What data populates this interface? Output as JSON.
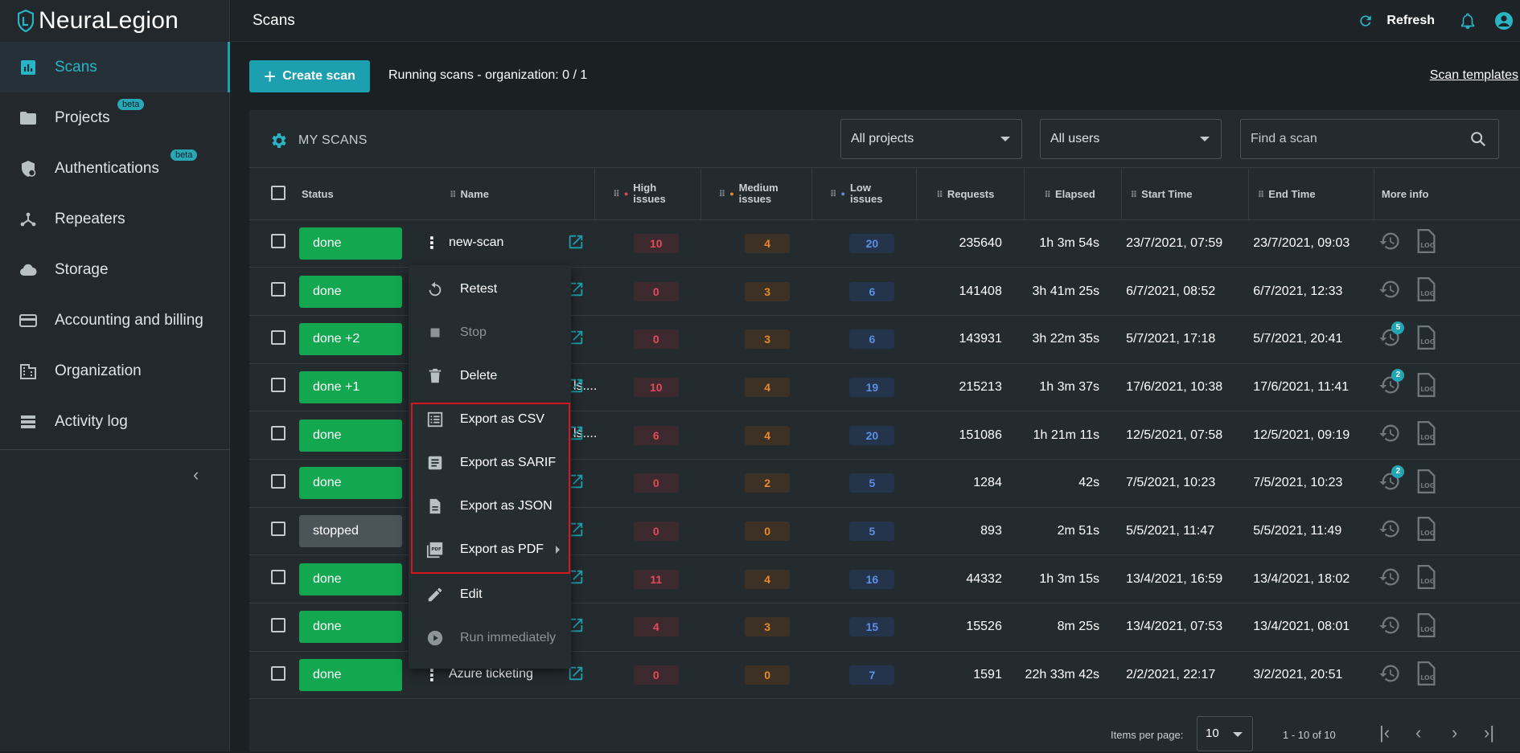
{
  "app": {
    "brand": "NeuraLegion",
    "page_title": "Scans",
    "refresh_label": "Refresh"
  },
  "sidebar": {
    "items": [
      {
        "label": "Scans",
        "icon": "bar-chart-icon",
        "active": true
      },
      {
        "label": "Projects",
        "icon": "folder-icon",
        "beta": "beta"
      },
      {
        "label": "Authentications",
        "icon": "shield-icon",
        "beta": "beta"
      },
      {
        "label": "Repeaters",
        "icon": "network-icon"
      },
      {
        "label": "Storage",
        "icon": "cloud-icon"
      },
      {
        "label": "Accounting and billing",
        "icon": "credit-card-icon"
      },
      {
        "label": "Organization",
        "icon": "building-icon"
      },
      {
        "label": "Activity log",
        "icon": "list-icon"
      }
    ],
    "collapse_glyph": "‹"
  },
  "toolbar": {
    "create_label": "Create scan",
    "running": "Running scans - organization: 0 / 1",
    "templates": "Scan templates"
  },
  "panel": {
    "title": "MY SCANS",
    "projects_select": "All projects",
    "users_select": "All users",
    "search_placeholder": "Find a scan"
  },
  "columns": [
    "Status",
    "Name",
    "High issues",
    "Medium issues",
    "Low issues",
    "Requests",
    "Elapsed",
    "Start Time",
    "End Time",
    "More info"
  ],
  "column_lines": {
    "high": [
      "High",
      "issues"
    ],
    "medium": [
      "Medium",
      "issues"
    ],
    "low": [
      "Low",
      "issues"
    ]
  },
  "rows": [
    {
      "status": "done",
      "name": "new-scan",
      "high": "10",
      "medium": "4",
      "low": "20",
      "requests": "235640",
      "elapsed": "1h 3m 54s",
      "start": "23/7/2021, 07:59",
      "end": "23/7/2021, 09:03",
      "badge": ""
    },
    {
      "status": "done",
      "name": "",
      "high": "0",
      "medium": "3",
      "low": "6",
      "requests": "141408",
      "elapsed": "3h 41m 25s",
      "start": "6/7/2021, 08:52",
      "end": "6/7/2021, 12:33",
      "badge": ""
    },
    {
      "status": "done +2",
      "name": "",
      "high": "0",
      "medium": "3",
      "low": "6",
      "requests": "143931",
      "elapsed": "3h 22m 35s",
      "start": "5/7/2021, 17:18",
      "end": "5/7/2021, 20:41",
      "badge": "5"
    },
    {
      "status": "done +1",
      "name": "ls....",
      "high": "10",
      "medium": "4",
      "low": "19",
      "requests": "215213",
      "elapsed": "1h 3m 37s",
      "start": "17/6/2021, 10:38",
      "end": "17/6/2021, 11:41",
      "badge": "2"
    },
    {
      "status": "done",
      "name": "ls....",
      "high": "6",
      "medium": "4",
      "low": "20",
      "requests": "151086",
      "elapsed": "1h 21m 11s",
      "start": "12/5/2021, 07:58",
      "end": "12/5/2021, 09:19",
      "badge": ""
    },
    {
      "status": "done",
      "name": "",
      "high": "0",
      "medium": "2",
      "low": "5",
      "requests": "1284",
      "elapsed": "42s",
      "start": "7/5/2021, 10:23",
      "end": "7/5/2021, 10:23",
      "badge": "2"
    },
    {
      "status": "stopped",
      "name": "",
      "high": "0",
      "medium": "0",
      "low": "5",
      "requests": "893",
      "elapsed": "2m 51s",
      "start": "5/5/2021, 11:47",
      "end": "5/5/2021, 11:49",
      "badge": ""
    },
    {
      "status": "done",
      "name": "",
      "high": "11",
      "medium": "4",
      "low": "16",
      "requests": "44332",
      "elapsed": "1h 3m 15s",
      "start": "13/4/2021, 16:59",
      "end": "13/4/2021, 18:02",
      "badge": ""
    },
    {
      "status": "done",
      "name": "",
      "high": "4",
      "medium": "3",
      "low": "15",
      "requests": "15526",
      "elapsed": "8m 25s",
      "start": "13/4/2021, 07:53",
      "end": "13/4/2021, 08:01",
      "badge": ""
    },
    {
      "status": "done",
      "name": "Azure ticketing",
      "high": "0",
      "medium": "0",
      "low": "7",
      "requests": "1591",
      "elapsed": "22h 33m 42s",
      "start": "2/2/2021, 22:17",
      "end": "3/2/2021, 20:51",
      "badge": ""
    }
  ],
  "row_icons": {
    "history": "history-icon",
    "log": "log-file-icon",
    "external": "external-link-icon"
  },
  "context_menu": {
    "items": [
      {
        "label": "Retest",
        "icon": "retest-icon",
        "disabled": false
      },
      {
        "label": "Stop",
        "icon": "stop-icon",
        "disabled": true
      },
      {
        "label": "Delete",
        "icon": "trash-icon",
        "disabled": false
      },
      {
        "label": "Export as CSV",
        "icon": "csv-icon",
        "disabled": false
      },
      {
        "label": "Export as SARIF",
        "icon": "document-icon",
        "disabled": false
      },
      {
        "label": "Export as JSON",
        "icon": "file-icon",
        "disabled": false
      },
      {
        "label": "Export as PDF",
        "icon": "pdf-icon",
        "disabled": false,
        "submenu": true
      },
      {
        "label": "Edit",
        "icon": "pencil-icon",
        "disabled": false
      },
      {
        "label": "Run immediately",
        "icon": "play-icon",
        "disabled": true
      }
    ]
  },
  "pager": {
    "items_per_page_label": "Items per page:",
    "page_size": "10",
    "range": "1 - 10 of 10"
  },
  "colors": {
    "accent": "#1c9fae",
    "done": "#13a750",
    "stopped": "#4b5459",
    "high": "#e14a5c",
    "medium": "#e8892c",
    "low": "#5d8fe6",
    "highlight": "#d6161d"
  }
}
